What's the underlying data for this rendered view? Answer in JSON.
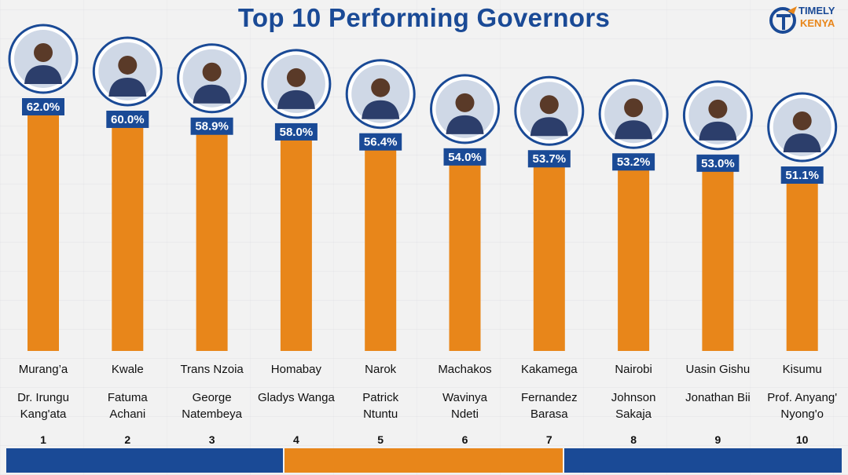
{
  "title": "Top 10 Performing Governors",
  "logo": {
    "line1": "TIMELY",
    "line2": "KENYA"
  },
  "colors": {
    "bar": "#e8861a",
    "label_bg": "#1a4a96",
    "title": "#1a4a96",
    "footer_blue": "#1a4a96",
    "footer_orange": "#e8861a"
  },
  "chart_data": {
    "type": "bar",
    "title": "Top 10 Performing Governors",
    "categories": [
      "Murang’a",
      "Kwale",
      "Trans Nzoia",
      "Homabay",
      "Narok",
      "Machakos",
      "Kakamega",
      "Nairobi",
      "Uasin Gishu",
      "Kisumu"
    ],
    "names": [
      "Dr. Irungu\nKang'ata",
      "Fatuma\nAchani",
      "George\nNatembeya",
      "Gladys Wanga",
      "Patrick\nNtuntu",
      "Wavinya\nNdeti",
      "Fernandez\nBarasa",
      "Johnson\nSakaja",
      "Jonathan Bii",
      "Prof. Anyang'\nNyong'o"
    ],
    "ranks": [
      "1",
      "2",
      "3",
      "4",
      "5",
      "6",
      "7",
      "8",
      "9",
      "10"
    ],
    "values": [
      62.0,
      60.0,
      58.9,
      58.0,
      56.4,
      54.0,
      53.7,
      53.2,
      53.0,
      51.1
    ],
    "value_labels": [
      "62.0%",
      "60.0%",
      "58.9%",
      "58.0%",
      "56.4%",
      "54.0%",
      "53.7%",
      "53.2%",
      "53.0%",
      "51.1%"
    ],
    "photo_icons": [
      "governor-photo",
      "governor-photo",
      "governor-photo",
      "governor-photo",
      "governor-photo",
      "governor-photo",
      "governor-photo",
      "governor-photo",
      "governor-photo",
      "governor-photo"
    ],
    "xlabel": "",
    "ylabel": "",
    "grid": false
  }
}
